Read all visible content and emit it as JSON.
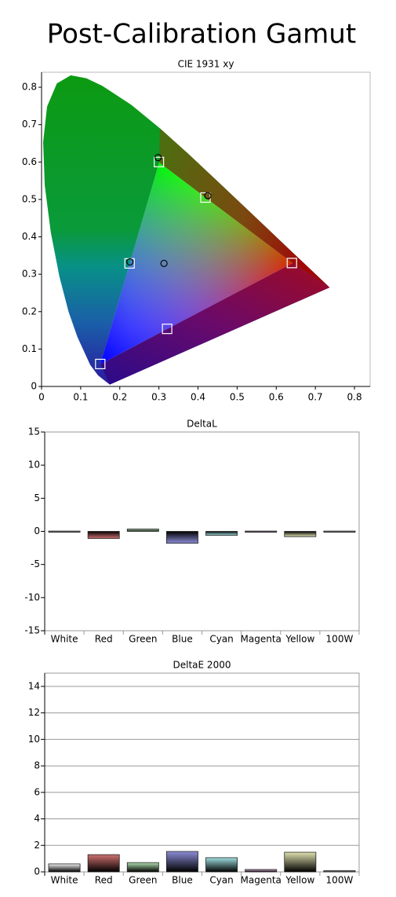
{
  "title": "Post-Calibration Gamut",
  "chart_data": [
    {
      "type": "scatter",
      "title": "CIE 1931 xy",
      "xlim": [
        0,
        0.84
      ],
      "ylim": [
        0,
        0.84
      ],
      "xticks": [
        0,
        0.1,
        0.2,
        0.3,
        0.4,
        0.5,
        0.6,
        0.7,
        0.8
      ],
      "yticks": [
        0,
        0.1,
        0.2,
        0.3,
        0.4,
        0.5,
        0.6,
        0.7,
        0.8
      ],
      "grid": false,
      "series": [
        {
          "marker": "square",
          "color": "#ffffff",
          "x": [
            0.64,
            0.3,
            0.15,
            0.225,
            0.321,
            0.419
          ],
          "values": [
            0.33,
            0.6,
            0.06,
            0.329,
            0.154,
            0.505
          ]
        },
        {
          "marker": "circle",
          "color": "#000000",
          "x": [
            0.298,
            0.425,
            0.226,
            0.313
          ],
          "values": [
            0.612,
            0.51,
            0.333,
            0.329
          ]
        }
      ]
    },
    {
      "type": "bar",
      "title": "DeltaL",
      "categories": [
        "White",
        "Red",
        "Green",
        "Blue",
        "Cyan",
        "Magenta",
        "Yellow",
        "100W"
      ],
      "values": [
        0.05,
        -1.07,
        0.35,
        -1.8,
        -0.6,
        0.05,
        -0.8,
        0.05
      ],
      "colors": [
        "#f0f0f0",
        "#d07070",
        "#b0e0b0",
        "#8c8cd8",
        "#a0e0e0",
        "#e0b0e0",
        "#e0e0b0",
        "#f0f0f0"
      ],
      "ylim": [
        -15,
        15
      ],
      "yticks": [
        -15,
        -10,
        -5,
        0,
        5,
        10,
        15
      ],
      "grid": false
    },
    {
      "type": "bar",
      "title": "DeltaE 2000",
      "categories": [
        "White",
        "Red",
        "Green",
        "Blue",
        "Cyan",
        "Magenta",
        "Yellow",
        "100W"
      ],
      "values": [
        0.6,
        1.3,
        0.7,
        1.54,
        1.07,
        0.18,
        1.48,
        0.1
      ],
      "colors": [
        "#f0f0f0",
        "#d07070",
        "#b0e0b0",
        "#8c8cd8",
        "#a0e0e0",
        "#e0b0e0",
        "#e0e0b0",
        "#f0f0f0"
      ],
      "ylim": [
        0,
        15
      ],
      "yticks": [
        0,
        2,
        4,
        6,
        8,
        10,
        12,
        14
      ],
      "grid": true
    }
  ]
}
